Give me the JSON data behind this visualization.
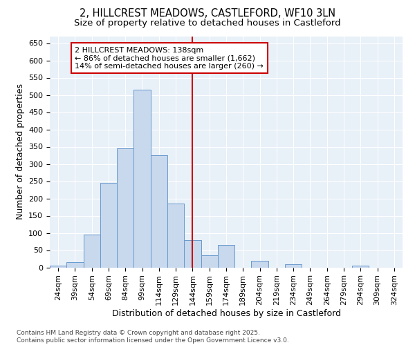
{
  "title_line1": "2, HILLCREST MEADOWS, CASTLEFORD, WF10 3LN",
  "title_line2": "Size of property relative to detached houses in Castleford",
  "xlabel": "Distribution of detached houses by size in Castleford",
  "ylabel": "Number of detached properties",
  "bins": [
    "24sqm",
    "39sqm",
    "54sqm",
    "69sqm",
    "84sqm",
    "99sqm",
    "114sqm",
    "129sqm",
    "144sqm",
    "159sqm",
    "174sqm",
    "189sqm",
    "204sqm",
    "219sqm",
    "234sqm",
    "249sqm",
    "264sqm",
    "279sqm",
    "294sqm",
    "309sqm",
    "324sqm"
  ],
  "bar_heights": [
    5,
    15,
    95,
    245,
    345,
    515,
    325,
    185,
    80,
    35,
    65,
    0,
    20,
    0,
    10,
    0,
    0,
    0,
    5,
    0,
    0
  ],
  "bar_color": "#c8d8ed",
  "bar_edge_color": "#6699cc",
  "vline_x": 8.0,
  "annotation_text": "2 HILLCREST MEADOWS: 138sqm\n← 86% of detached houses are smaller (1,662)\n14% of semi-detached houses are larger (260) →",
  "annotation_box_facecolor": "#ffffff",
  "annotation_box_edgecolor": "#cc0000",
  "vline_color": "#cc0000",
  "ylim_max": 670,
  "ytick_max": 650,
  "ytick_step": 50,
  "background_color": "#e8f0f8",
  "footer_text": "Contains HM Land Registry data © Crown copyright and database right 2025.\nContains public sector information licensed under the Open Government Licence v3.0.",
  "title_fontsize": 10.5,
  "subtitle_fontsize": 9.5,
  "axis_label_fontsize": 9,
  "tick_fontsize": 8,
  "annotation_fontsize": 8,
  "footer_fontsize": 6.5
}
